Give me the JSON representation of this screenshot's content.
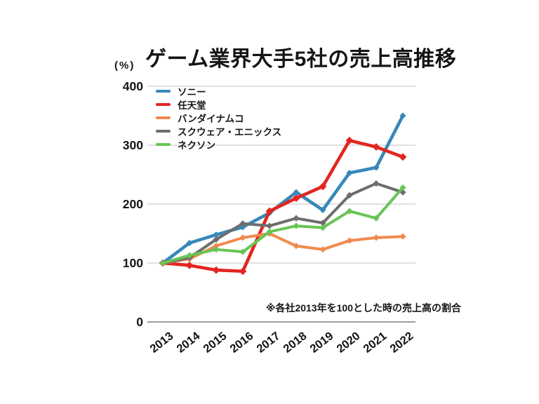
{
  "chart_data": {
    "type": "line",
    "title": "ゲーム業界大手5社の売上高推移",
    "y_unit_label": "(%)",
    "note": "※各社2013年を100とした時の売上高の割合",
    "categories": [
      "2013",
      "2014",
      "2015",
      "2016",
      "2017",
      "2018",
      "2019",
      "2020",
      "2021",
      "2022"
    ],
    "ylim": [
      0,
      400
    ],
    "y_tick_step": 100,
    "y_tick_labels": [
      "0",
      "100",
      "200",
      "300",
      "400"
    ],
    "grid": "horizontal-on",
    "legend_position": "top-left-inside",
    "colors": {
      "grid": "#d6d6d6",
      "axis_zero_line": "#9e9e9e",
      "text": "#151515"
    },
    "series": [
      {
        "name": "ソニー",
        "color": "#3788BA",
        "values": [
          100,
          134,
          148,
          161,
          185,
          220,
          190,
          253,
          262,
          350
        ]
      },
      {
        "name": "任天堂",
        "color": "#E32521",
        "values": [
          100,
          96,
          88,
          86,
          188,
          210,
          230,
          308,
          297,
          280
        ]
      },
      {
        "name": "バンダイナムコ",
        "color": "#F08A4D",
        "values": [
          100,
          107,
          129,
          143,
          150,
          129,
          123,
          138,
          143,
          145
        ]
      },
      {
        "name": "スクウェア・エニックス",
        "color": "#6D6D6D",
        "values": [
          100,
          109,
          140,
          167,
          163,
          176,
          168,
          215,
          235,
          220
        ]
      },
      {
        "name": "ネクソン",
        "color": "#69C455",
        "values": [
          100,
          113,
          123,
          119,
          153,
          163,
          160,
          188,
          176,
          228
        ]
      }
    ]
  }
}
